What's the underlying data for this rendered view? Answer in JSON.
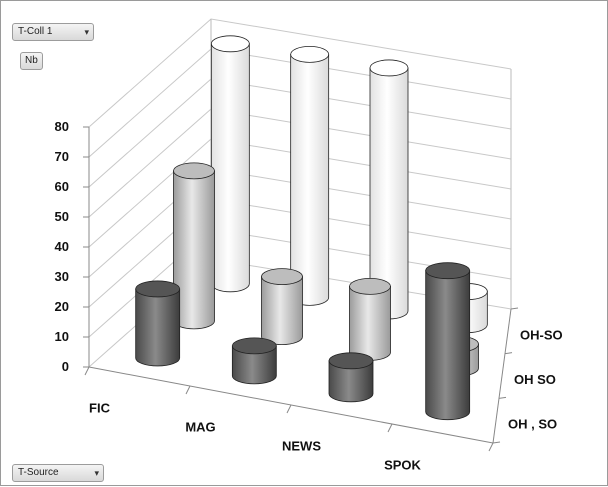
{
  "filters": {
    "top_label": "T-Coll 1",
    "value_button": "Nb",
    "bottom_label": "T-Source",
    "dropdown_icon": "filter-dropdown-icon"
  },
  "chart_data": {
    "type": "bar3d",
    "title": "",
    "categories": [
      "FIC",
      "MAG",
      "NEWS",
      "SPOK"
    ],
    "series": [
      {
        "name": "OH , SO",
        "color": "#6f6f6f",
        "values": [
          23,
          10,
          11,
          47
        ]
      },
      {
        "name": "OH SO",
        "color": "#c9c9c9",
        "values": [
          50,
          20,
          22,
          8
        ]
      },
      {
        "name": "OH-SO",
        "color": "#ffffff",
        "values": [
          80,
          81,
          81,
          11
        ]
      }
    ],
    "yticks": [
      0,
      10,
      20,
      30,
      40,
      50,
      60,
      70,
      80
    ],
    "ylim": [
      0,
      80
    ],
    "grid": true
  }
}
